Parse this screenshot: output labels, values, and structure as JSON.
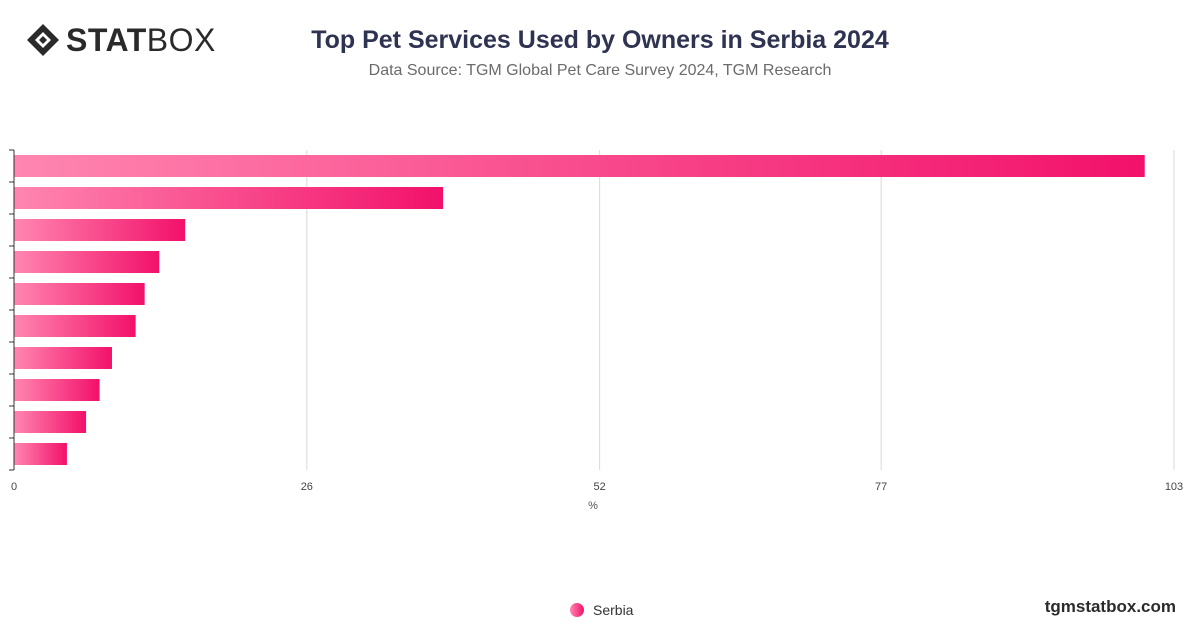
{
  "header": {
    "logo_bold": "STAT",
    "logo_light": "BOX",
    "title": "Top Pet Services Used by Owners in Serbia 2024",
    "subtitle": "Data Source: TGM Global Pet Care Survey 2024, TGM Research"
  },
  "footer": {
    "site": "tgmstatbox.com"
  },
  "colors": {
    "bar_start": "#ff86b0",
    "bar_end": "#f2116a",
    "grid": "#d9d9d9",
    "axis": "#333333"
  },
  "chart_data": {
    "type": "bar",
    "orientation": "horizontal",
    "categories": [
      "",
      "",
      "",
      "",
      "",
      "",
      "",
      "",
      "",
      ""
    ],
    "series": [
      {
        "name": "Serbia",
        "values": [
          100.4,
          38.1,
          15.2,
          12.9,
          11.6,
          10.8,
          8.7,
          7.6,
          6.4,
          4.7
        ]
      }
    ],
    "xlabel": "%",
    "xlim": [
      0,
      103
    ],
    "xticks": [
      0,
      26,
      52,
      77,
      103
    ],
    "grid": true,
    "legend_position": "bottom-center"
  }
}
